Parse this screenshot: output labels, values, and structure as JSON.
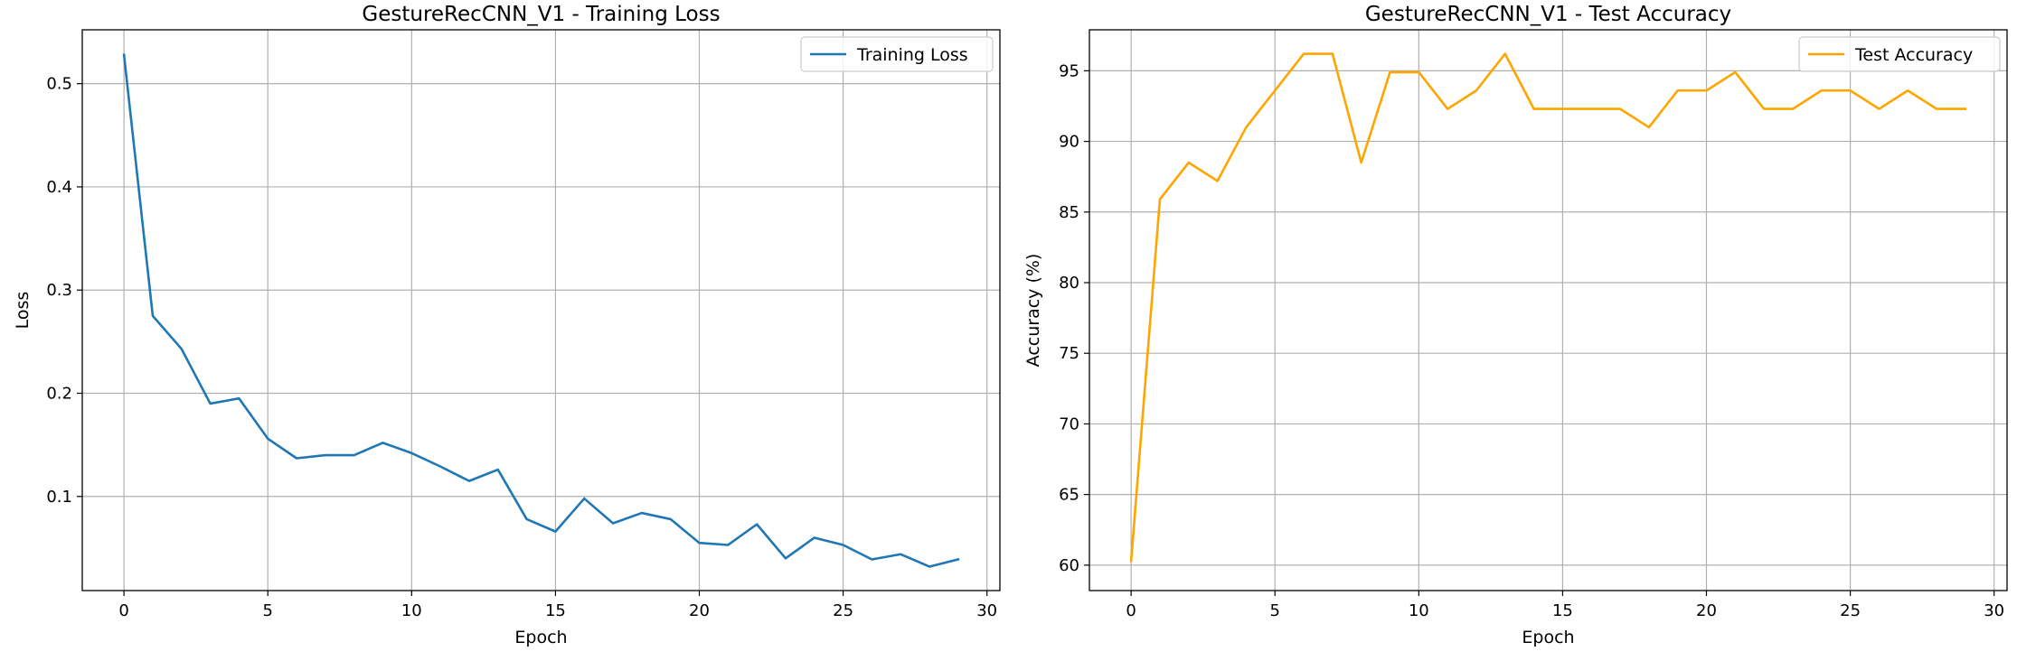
{
  "chart_data": [
    {
      "type": "line",
      "title": "GestureRecCNN_V1 - Training Loss",
      "xlabel": "Epoch",
      "ylabel": "Loss",
      "xlim": [
        -1.45,
        30.45
      ],
      "ylim": [
        0.0088,
        0.5522
      ],
      "xticks": [
        0,
        5,
        10,
        15,
        20,
        25,
        30
      ],
      "yticks": [
        0.1,
        0.2,
        0.3,
        0.4,
        0.5
      ],
      "grid": true,
      "legend_position": "top-right",
      "color": "#1f77b4",
      "series": [
        {
          "name": "Training Loss",
          "x": [
            0,
            1,
            2,
            3,
            4,
            5,
            6,
            7,
            8,
            9,
            10,
            11,
            12,
            13,
            14,
            15,
            16,
            17,
            18,
            19,
            20,
            21,
            22,
            23,
            24,
            25,
            26,
            27,
            28,
            29
          ],
          "values": [
            0.528,
            0.275,
            0.243,
            0.19,
            0.195,
            0.156,
            0.137,
            0.14,
            0.14,
            0.152,
            0.142,
            0.129,
            0.115,
            0.126,
            0.078,
            0.066,
            0.098,
            0.074,
            0.084,
            0.078,
            0.055,
            0.053,
            0.073,
            0.04,
            0.06,
            0.053,
            0.039,
            0.044,
            0.032,
            0.039
          ]
        }
      ]
    },
    {
      "type": "line",
      "title": "GestureRecCNN_V1 - Test Accuracy",
      "xlabel": "Epoch",
      "ylabel": "Accuracy (%)",
      "xlim": [
        -1.45,
        30.45
      ],
      "ylim": [
        58.2,
        97.9
      ],
      "xticks": [
        0,
        5,
        10,
        15,
        20,
        25,
        30
      ],
      "yticks": [
        60,
        65,
        70,
        75,
        80,
        85,
        90,
        95
      ],
      "grid": true,
      "legend_position": "top-right",
      "color": "#ffa500",
      "series": [
        {
          "name": "Test Accuracy",
          "x": [
            0,
            1,
            2,
            3,
            4,
            5,
            6,
            7,
            8,
            9,
            10,
            11,
            12,
            13,
            14,
            15,
            16,
            17,
            18,
            19,
            20,
            21,
            22,
            23,
            24,
            25,
            26,
            27,
            28,
            29
          ],
          "values": [
            60.3,
            85.9,
            88.5,
            87.2,
            91.0,
            93.6,
            96.2,
            96.2,
            88.5,
            94.9,
            94.9,
            92.3,
            93.6,
            96.2,
            92.3,
            92.3,
            92.3,
            92.3,
            91.0,
            93.6,
            93.6,
            94.9,
            92.3,
            92.3,
            93.6,
            93.6,
            92.3,
            93.6,
            92.3,
            92.3
          ]
        }
      ]
    }
  ]
}
